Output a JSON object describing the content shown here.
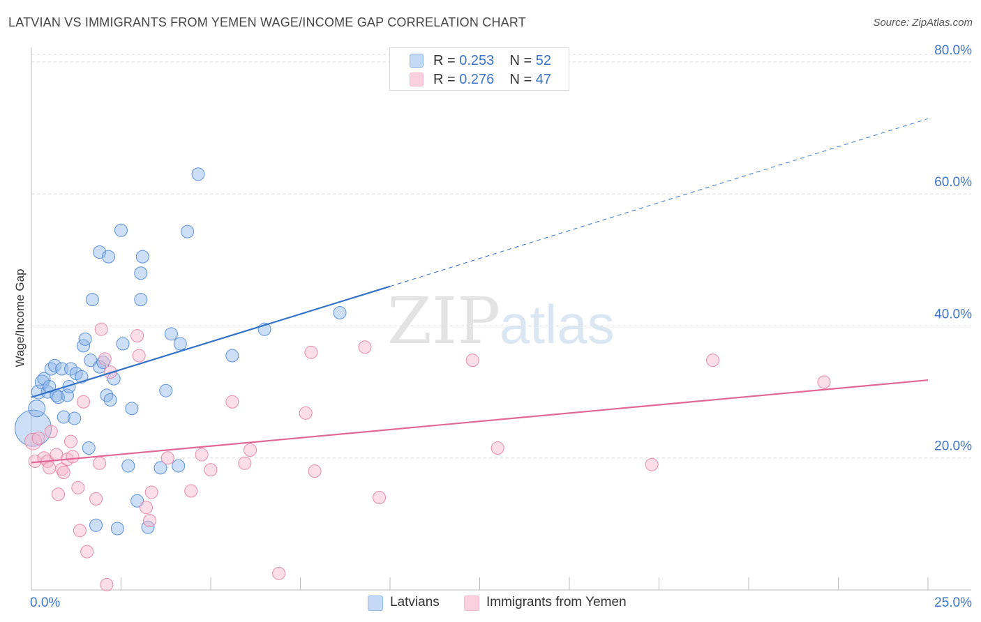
{
  "header": {
    "title": "LATVIAN VS IMMIGRANTS FROM YEMEN WAGE/INCOME GAP CORRELATION CHART",
    "source": "Source: ZipAtlas.com"
  },
  "watermark": {
    "zip": "ZIP",
    "atlas": "atlas"
  },
  "legend": [
    {
      "r_label": "R =",
      "r_value": "0.253",
      "n_label": "N =",
      "n_value": "52"
    },
    {
      "r_label": "R =",
      "r_value": "0.276",
      "n_label": "N =",
      "n_value": "47"
    }
  ],
  "chart_data": {
    "type": "scatter",
    "ylabel": "Wage/Income Gap",
    "xlim": [
      0,
      25
    ],
    "ylim": [
      0,
      82
    ],
    "x_ticks": [
      "0.0%",
      "25.0%"
    ],
    "y_ticks": [
      {
        "value": 20,
        "label": "20.0%"
      },
      {
        "value": 40,
        "label": "40.0%"
      },
      {
        "value": 60,
        "label": "60.0%"
      },
      {
        "value": 80,
        "label": "80.0%"
      }
    ],
    "grid": true,
    "series": [
      {
        "name": "Latvians",
        "color": "#8fb8ec",
        "stroke": "#5b8fd6",
        "trend": {
          "x0": 0,
          "y0": 29.2,
          "x1": 10,
          "y1": 46.0,
          "dash_to_x": 25,
          "dash_to_y": 71.4,
          "color": "#3272c8"
        },
        "points": [
          [
            0.05,
            24.5,
            26
          ],
          [
            0.15,
            27.5,
            12
          ],
          [
            0.2,
            30.0,
            10
          ],
          [
            0.3,
            31.5,
            10
          ],
          [
            0.35,
            32.0,
            9
          ],
          [
            0.45,
            30.0,
            9
          ],
          [
            0.5,
            30.8,
            9
          ],
          [
            0.55,
            33.5,
            9
          ],
          [
            0.65,
            34.0,
            9
          ],
          [
            0.7,
            29.5,
            9
          ],
          [
            0.75,
            29.2,
            9
          ],
          [
            0.85,
            33.5,
            9
          ],
          [
            0.9,
            26.2,
            9
          ],
          [
            1.0,
            29.5,
            9
          ],
          [
            1.05,
            30.8,
            9
          ],
          [
            1.1,
            33.5,
            9
          ],
          [
            1.2,
            26.0,
            9
          ],
          [
            1.25,
            32.8,
            9
          ],
          [
            1.4,
            32.3,
            9
          ],
          [
            1.45,
            37.0,
            9
          ],
          [
            1.5,
            38.0,
            9
          ],
          [
            1.6,
            21.5,
            9
          ],
          [
            1.65,
            34.8,
            9
          ],
          [
            1.7,
            44.0,
            9
          ],
          [
            1.8,
            9.8,
            9
          ],
          [
            1.9,
            33.8,
            9
          ],
          [
            1.9,
            51.2,
            9
          ],
          [
            2.0,
            34.5,
            9
          ],
          [
            2.1,
            29.5,
            9
          ],
          [
            2.15,
            50.5,
            9
          ],
          [
            2.2,
            28.8,
            9
          ],
          [
            2.3,
            32.0,
            9
          ],
          [
            2.4,
            9.3,
            9
          ],
          [
            2.5,
            54.5,
            9
          ],
          [
            2.55,
            37.3,
            9
          ],
          [
            2.7,
            18.8,
            9
          ],
          [
            2.8,
            27.5,
            9
          ],
          [
            2.95,
            13.5,
            9
          ],
          [
            3.05,
            48.0,
            9
          ],
          [
            3.05,
            44.0,
            9
          ],
          [
            3.1,
            50.5,
            9
          ],
          [
            3.25,
            9.5,
            9
          ],
          [
            3.6,
            18.5,
            9
          ],
          [
            3.75,
            30.2,
            9
          ],
          [
            3.9,
            38.8,
            9
          ],
          [
            4.1,
            18.8,
            9
          ],
          [
            4.15,
            37.3,
            9
          ],
          [
            4.35,
            54.3,
            9
          ],
          [
            4.65,
            63.0,
            9
          ],
          [
            5.6,
            35.5,
            9
          ],
          [
            6.5,
            39.5,
            9
          ],
          [
            8.6,
            42.0,
            9
          ]
        ]
      },
      {
        "name": "Immigrants from Yemen",
        "color": "#f6b6cb",
        "stroke": "#e48aaa",
        "trend": {
          "x0": 0,
          "y0": 19.3,
          "x1": 25,
          "y1": 31.8,
          "color": "#e06896"
        },
        "points": [
          [
            0.05,
            22.5,
            12
          ],
          [
            0.1,
            19.5,
            9
          ],
          [
            0.2,
            23.0,
            9
          ],
          [
            0.35,
            20.0,
            9
          ],
          [
            0.45,
            19.5,
            9
          ],
          [
            0.5,
            18.5,
            9
          ],
          [
            0.55,
            24.0,
            9
          ],
          [
            0.7,
            20.5,
            9
          ],
          [
            0.75,
            14.5,
            9
          ],
          [
            0.85,
            18.3,
            9
          ],
          [
            0.9,
            17.8,
            9
          ],
          [
            1.0,
            19.8,
            9
          ],
          [
            1.1,
            22.5,
            9
          ],
          [
            1.15,
            20.2,
            9
          ],
          [
            1.3,
            15.5,
            9
          ],
          [
            1.35,
            9.0,
            9
          ],
          [
            1.45,
            28.5,
            9
          ],
          [
            1.55,
            5.8,
            9
          ],
          [
            1.8,
            13.8,
            9
          ],
          [
            1.9,
            19.2,
            9
          ],
          [
            1.95,
            39.5,
            9
          ],
          [
            2.05,
            35.0,
            9
          ],
          [
            2.2,
            33.0,
            9
          ],
          [
            2.1,
            0.8,
            9
          ],
          [
            2.95,
            38.5,
            9
          ],
          [
            3.0,
            35.5,
            9
          ],
          [
            3.2,
            12.5,
            9
          ],
          [
            3.3,
            10.5,
            9
          ],
          [
            3.35,
            14.8,
            9
          ],
          [
            3.8,
            20.0,
            9
          ],
          [
            4.45,
            15.0,
            9
          ],
          [
            4.75,
            20.5,
            9
          ],
          [
            5.0,
            18.2,
            9
          ],
          [
            5.6,
            28.5,
            9
          ],
          [
            5.95,
            19.2,
            9
          ],
          [
            6.1,
            21.2,
            9
          ],
          [
            6.9,
            2.5,
            9
          ],
          [
            7.65,
            26.8,
            9
          ],
          [
            7.8,
            36.0,
            9
          ],
          [
            7.9,
            18.0,
            9
          ],
          [
            9.3,
            36.8,
            9
          ],
          [
            9.7,
            14.0,
            9
          ],
          [
            12.3,
            34.8,
            9
          ],
          [
            13.0,
            21.5,
            9
          ],
          [
            17.3,
            19.0,
            9
          ],
          [
            19.0,
            34.8,
            9
          ],
          [
            22.1,
            31.5,
            9
          ]
        ]
      }
    ]
  }
}
